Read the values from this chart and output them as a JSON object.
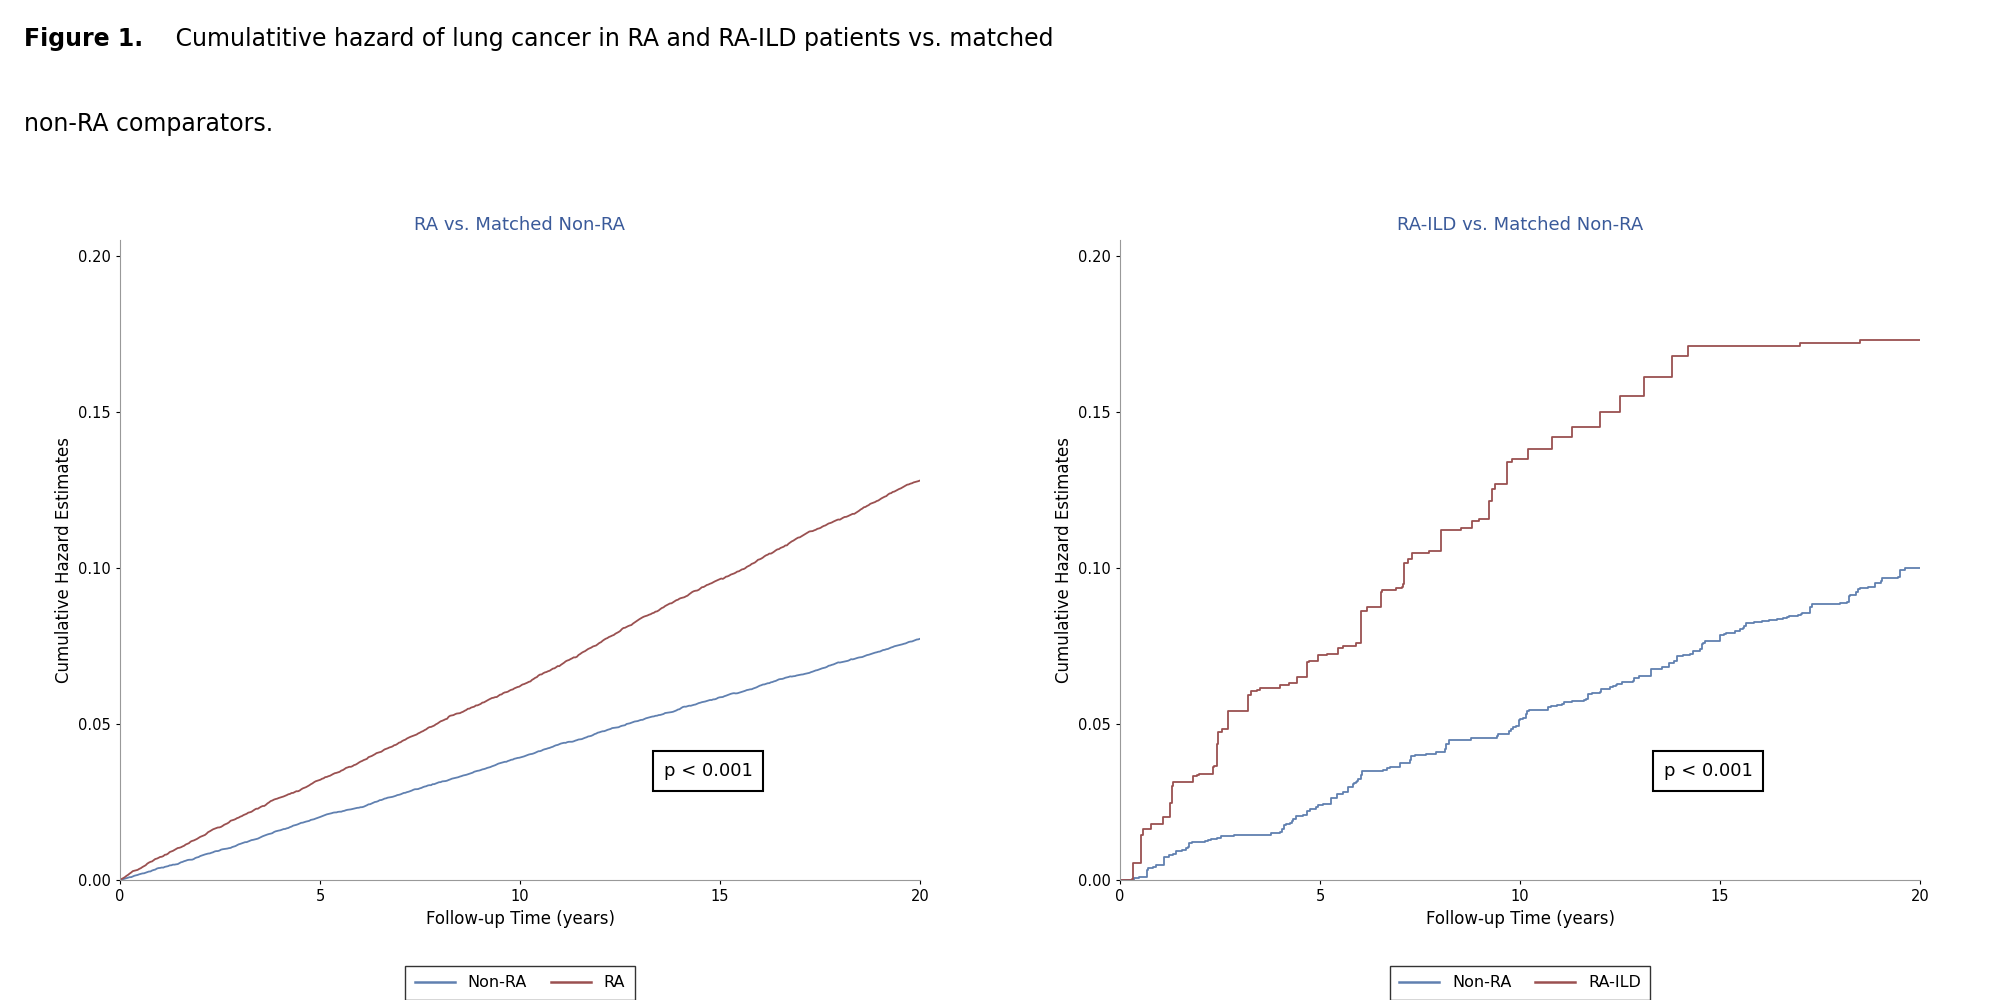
{
  "plot1_title": "RA vs. Matched Non-RA",
  "plot2_title": "RA-ILD vs. Matched Non-RA",
  "ylabel": "Cumulative Hazard Estimates",
  "xlabel": "Follow-up Time (years)",
  "pvalue": "p < 0.001",
  "ylim": [
    0.0,
    0.205
  ],
  "xlim": [
    0,
    20
  ],
  "yticks": [
    0.0,
    0.05,
    0.1,
    0.15,
    0.2
  ],
  "xticks": [
    0,
    5,
    10,
    15,
    20
  ],
  "title_color": "#3a5a9a",
  "nonra_color": "#6080b0",
  "ra_color": "#9a5050",
  "raild_color": "#9a5050",
  "legend1": [
    "Non-RA",
    "RA"
  ],
  "legend2": [
    "Non-RA",
    "RA-ILD"
  ],
  "background_color": "#ffffff",
  "figure_title_bold": "Figure 1.",
  "figure_title_rest": " Cumulatitive hazard of lung cancer in RA and RA-ILD patients vs. matched",
  "figure_title_line2": "non-RA comparators."
}
